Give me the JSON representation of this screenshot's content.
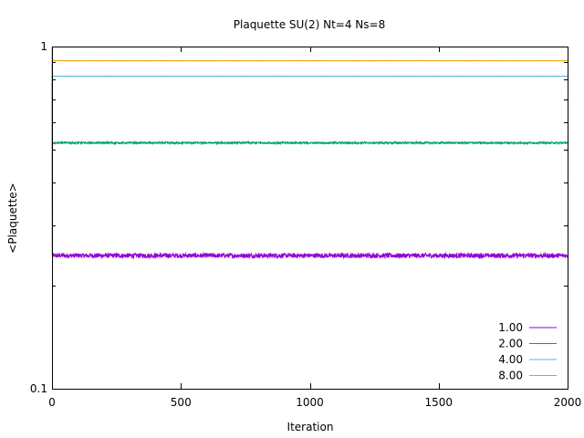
{
  "chart_data": {
    "type": "line",
    "title": "Plaquette SU(2) Nt=4 Ns=8",
    "xlabel": "Iteration",
    "ylabel": "<Plaquette>",
    "xlim": [
      0,
      2000
    ],
    "ylim": [
      0.1,
      1
    ],
    "yscale": "log",
    "grid": false,
    "legend_position": "bottom-right",
    "x_ticks": [
      0,
      500,
      1000,
      1500,
      2000
    ],
    "x_tick_labels": [
      "0",
      "500",
      "1000",
      "1500",
      "2000"
    ],
    "y_ticks": [
      0.1,
      1
    ],
    "y_tick_labels": [
      "0.1",
      "1"
    ],
    "y_minor_ticks": [
      0.2,
      0.3,
      0.4,
      0.5,
      0.6,
      0.7,
      0.8,
      0.9
    ],
    "x_range": [
      0,
      2000
    ],
    "series": [
      {
        "name": "1.00",
        "color": "#9400d3",
        "mean": 0.245,
        "fluctuation": 0.004
      },
      {
        "name": "2.00",
        "color": "#009e73",
        "mean": 0.523,
        "fluctuation": 0.003
      },
      {
        "name": "4.00",
        "color": "#56b4e9",
        "mean": 0.819,
        "fluctuation": 0.0008
      },
      {
        "name": "8.00",
        "color": "#e69f00",
        "mean": 0.909,
        "fluctuation": 0.0004
      }
    ]
  }
}
